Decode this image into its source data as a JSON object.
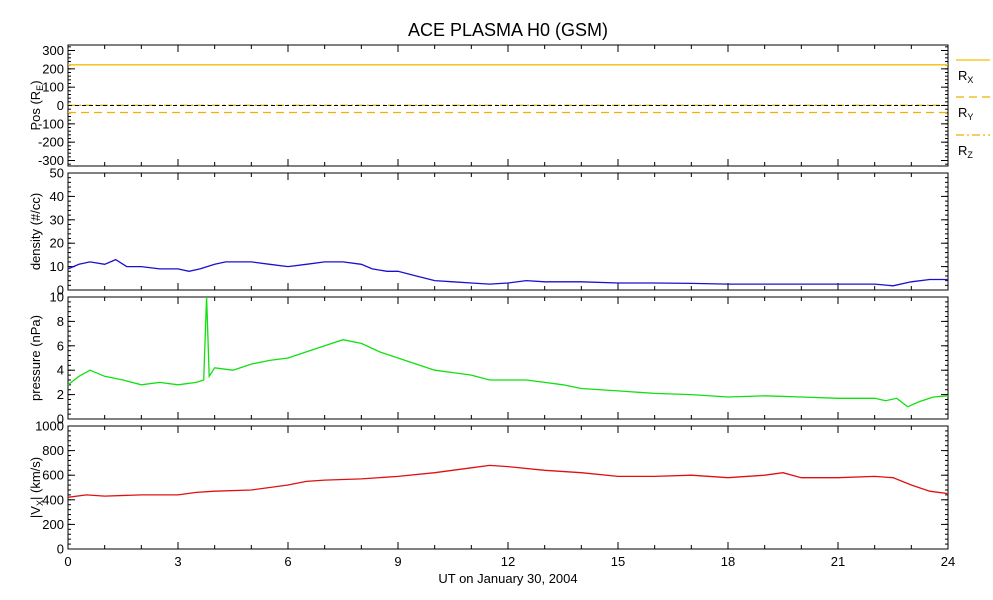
{
  "title": "ACE PLASMA H0 (GSM)",
  "xlabel": "UT on January 30, 2004",
  "x_ticks": [
    "0",
    "3",
    "6",
    "9",
    "12",
    "15",
    "18",
    "21",
    "24"
  ],
  "colors": {
    "rx": "#f0c000",
    "ry": "#f0b000",
    "rz": "#f0b000",
    "density": "#1a10d0",
    "pressure": "#10e010",
    "velocity": "#e01010",
    "zero_line": "#000000"
  },
  "chart_data": [
    {
      "type": "line",
      "panel": "position",
      "ylabel_main": "Pos (R",
      "ylabel_sub": "E",
      "ylabel_end": ")",
      "ylim": [
        -330,
        330
      ],
      "yticks": [
        300,
        200,
        100,
        0,
        -100,
        -200,
        -300
      ],
      "ytick_labels": [
        "300",
        "200",
        "100",
        "0",
        "-100",
        "-200",
        "-300"
      ],
      "xlim": [
        0,
        24
      ],
      "series": [
        {
          "name": "R",
          "sub": "X",
          "style": "solid",
          "x": [
            0,
            24
          ],
          "values": [
            222,
            222
          ]
        },
        {
          "name": "R",
          "sub": "Y",
          "style": "dashed",
          "x": [
            0,
            24
          ],
          "values": [
            -38,
            -38
          ]
        },
        {
          "name": "R",
          "sub": "Z",
          "style": "dashdot",
          "x": [
            0,
            24
          ],
          "values": [
            1,
            1
          ]
        }
      ]
    },
    {
      "type": "line",
      "panel": "density",
      "ylabel": "density (#/cc)",
      "ylim": [
        0,
        50
      ],
      "yticks": [
        0,
        10,
        20,
        30,
        40,
        50
      ],
      "ytick_labels": [
        "0",
        "10",
        "20",
        "30",
        "40",
        "50"
      ],
      "xlim": [
        0,
        24
      ],
      "series": [
        {
          "x": [
            0,
            0.3,
            0.6,
            1.0,
            1.3,
            1.6,
            2.0,
            2.5,
            3.0,
            3.3,
            3.6,
            4.0,
            4.3,
            4.6,
            5.0,
            5.5,
            6.0,
            6.5,
            7.0,
            7.5,
            8.0,
            8.3,
            8.7,
            9.0,
            9.5,
            10.0,
            10.5,
            11.0,
            11.5,
            12.0,
            12.5,
            13.0,
            14.0,
            15.0,
            16.0,
            17.0,
            18.0,
            19.0,
            20.0,
            21.0,
            22.0,
            22.5,
            23.0,
            23.5,
            24.0
          ],
          "values": [
            9,
            11,
            12,
            11,
            13,
            10,
            10,
            9,
            9,
            8,
            9,
            11,
            12,
            12,
            12,
            11,
            10,
            11,
            12,
            12,
            11,
            9,
            8,
            8,
            6,
            4,
            3.5,
            3,
            2.5,
            3,
            4,
            3.5,
            3.5,
            3,
            3,
            2.8,
            2.5,
            2.5,
            2.5,
            2.5,
            2.5,
            1.8,
            3.5,
            4.5,
            4.5
          ]
        }
      ]
    },
    {
      "type": "line",
      "panel": "pressure",
      "ylabel": "pressure (nPa)",
      "ylim": [
        0,
        10
      ],
      "yticks": [
        0,
        2,
        4,
        6,
        8,
        10
      ],
      "ytick_labels": [
        "0",
        "2",
        "4",
        "6",
        "8",
        "10"
      ],
      "xlim": [
        0,
        24
      ],
      "series": [
        {
          "x": [
            0,
            0.3,
            0.6,
            1.0,
            1.5,
            2.0,
            2.5,
            3.0,
            3.5,
            3.7,
            3.78,
            3.85,
            4.0,
            4.5,
            5.0,
            5.5,
            6.0,
            6.5,
            7.0,
            7.5,
            8.0,
            8.5,
            9.0,
            9.5,
            10.0,
            10.5,
            11.0,
            11.5,
            12.0,
            12.5,
            13.0,
            13.5,
            14.0,
            15.0,
            16.0,
            17.0,
            18.0,
            19.0,
            20.0,
            21.0,
            22.0,
            22.3,
            22.6,
            22.9,
            23.2,
            23.6,
            24.0
          ],
          "values": [
            2.8,
            3.5,
            4.0,
            3.5,
            3.2,
            2.8,
            3.0,
            2.8,
            3.0,
            3.2,
            10.0,
            3.5,
            4.2,
            4.0,
            4.5,
            4.8,
            5.0,
            5.5,
            6.0,
            6.5,
            6.2,
            5.5,
            5.0,
            4.5,
            4.0,
            3.8,
            3.6,
            3.2,
            3.2,
            3.2,
            3.0,
            2.8,
            2.5,
            2.3,
            2.1,
            2.0,
            1.8,
            1.9,
            1.8,
            1.7,
            1.7,
            1.5,
            1.7,
            1.0,
            1.4,
            1.8,
            1.9
          ]
        }
      ]
    },
    {
      "type": "line",
      "panel": "velocity",
      "ylabel_main": "|V",
      "ylabel_sub": "X",
      "ylabel_end": "| (km/s)",
      "ylim": [
        0,
        1000
      ],
      "yticks": [
        0,
        200,
        400,
        600,
        800,
        1000
      ],
      "ytick_labels": [
        "0",
        "200",
        "400",
        "600",
        "800",
        "1000"
      ],
      "xlim": [
        0,
        24
      ],
      "series": [
        {
          "x": [
            0,
            0.5,
            1.0,
            2.0,
            3.0,
            3.5,
            4.0,
            5.0,
            6.0,
            6.5,
            7.0,
            8.0,
            9.0,
            10.0,
            11.0,
            11.5,
            12.0,
            13.0,
            14.0,
            15.0,
            16.0,
            17.0,
            18.0,
            19.0,
            19.5,
            20.0,
            21.0,
            22.0,
            22.5,
            23.0,
            23.5,
            24.0
          ],
          "values": [
            420,
            440,
            430,
            440,
            440,
            460,
            470,
            480,
            520,
            550,
            560,
            570,
            590,
            620,
            660,
            680,
            670,
            640,
            620,
            590,
            590,
            600,
            580,
            600,
            620,
            580,
            580,
            590,
            580,
            520,
            470,
            450
          ]
        }
      ]
    }
  ]
}
